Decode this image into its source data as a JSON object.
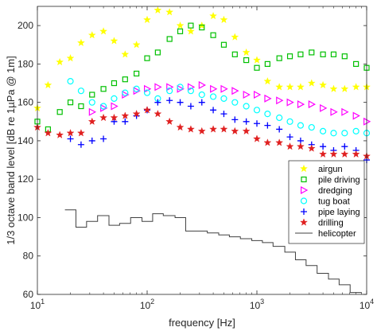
{
  "chart_data": {
    "type": "scatter",
    "title": "",
    "xlabel": "frequency [Hz]",
    "ylabel": "1/3 octave band level [dB re 1µPa @ 1m]",
    "x_scale": "log",
    "xlim": [
      10,
      10000
    ],
    "ylim": [
      60,
      210
    ],
    "x_ticks": [
      10,
      100,
      1000,
      10000
    ],
    "x_tick_labels": [
      "10",
      "10",
      "10",
      "10"
    ],
    "x_tick_exponents": [
      "1",
      "2",
      "3",
      "4"
    ],
    "y_ticks": [
      60,
      80,
      100,
      120,
      140,
      160,
      180,
      200
    ],
    "legend_position": "bottom-right",
    "grid": false,
    "series": [
      {
        "name": "airgun",
        "marker": "star-filled",
        "color": "#ffff00",
        "x": [
          10,
          12.5,
          16,
          20,
          25,
          31.5,
          40,
          50,
          63,
          80,
          100,
          125,
          160,
          200,
          250,
          315,
          400,
          500,
          630,
          800,
          1000,
          1250,
          1600,
          2000,
          2500,
          3150,
          4000,
          5000,
          6300,
          8000,
          10000
        ],
        "y": [
          157,
          169,
          181,
          183,
          191,
          195,
          197,
          192,
          185,
          190,
          203,
          208,
          207,
          200,
          197,
          200,
          205,
          203,
          194,
          186,
          182,
          171,
          168,
          168,
          168,
          170,
          169,
          167,
          167,
          168,
          168
        ]
      },
      {
        "name": "pile driving",
        "marker": "square",
        "color": "#00c000",
        "x": [
          10,
          12.5,
          16,
          20,
          25,
          31.5,
          40,
          50,
          63,
          80,
          100,
          125,
          160,
          200,
          250,
          315,
          400,
          500,
          630,
          800,
          1000,
          1250,
          1600,
          2000,
          2500,
          3150,
          4000,
          5000,
          6300,
          8000,
          10000
        ],
        "y": [
          150,
          146,
          155,
          160,
          158,
          164,
          167,
          170,
          172,
          175,
          183,
          186,
          193,
          197,
          200,
          199,
          195,
          190,
          185,
          182,
          178,
          180,
          183,
          184,
          185,
          186,
          185,
          185,
          184,
          180,
          178
        ]
      },
      {
        "name": "dredging",
        "marker": "triangle-right",
        "color": "#ff00ff",
        "x": [
          31.5,
          40,
          50,
          63,
          80,
          100,
          125,
          160,
          200,
          250,
          315,
          400,
          500,
          630,
          800,
          1000,
          1250,
          1600,
          2000,
          2500,
          3150,
          4000,
          5000,
          6300,
          8000,
          10000
        ],
        "y": [
          155,
          157,
          158,
          164,
          166,
          167,
          168,
          168,
          167,
          168,
          169,
          167,
          167,
          166,
          164,
          164,
          162,
          161,
          160,
          159,
          159,
          157,
          155,
          155,
          153,
          150
        ]
      },
      {
        "name": "tug boat",
        "marker": "circle",
        "color": "#00ffff",
        "x": [
          20,
          25,
          31.5,
          40,
          50,
          63,
          80,
          100,
          125,
          160,
          200,
          250,
          315,
          400,
          500,
          630,
          800,
          1000,
          1250,
          1600,
          2000,
          2500,
          3150,
          4000,
          5000,
          6300,
          8000,
          10000
        ],
        "y": [
          171,
          166,
          160,
          158,
          162,
          165,
          167,
          165,
          162,
          166,
          168,
          166,
          164,
          163,
          162,
          160,
          158,
          156,
          154,
          152,
          150,
          148,
          147,
          145,
          144,
          144,
          145,
          144
        ]
      },
      {
        "name": "pipe laying",
        "marker": "plus",
        "color": "#0000ff",
        "x": [
          20,
          25,
          31.5,
          40,
          50,
          63,
          80,
          100,
          125,
          160,
          200,
          250,
          315,
          400,
          500,
          630,
          800,
          1000,
          1250,
          1600,
          2000,
          2500,
          3150,
          4000,
          5000,
          6300,
          8000,
          10000
        ],
        "y": [
          141,
          138,
          140,
          141,
          150,
          150,
          153,
          156,
          160,
          161,
          160,
          158,
          160,
          156,
          154,
          151,
          150,
          149,
          148,
          146,
          142,
          140,
          138,
          137,
          135,
          137,
          135,
          130
        ]
      },
      {
        "name": "drilling",
        "marker": "star-filled",
        "color": "#e02020",
        "x": [
          10,
          12.5,
          16,
          20,
          25,
          31.5,
          40,
          50,
          63,
          80,
          100,
          125,
          160,
          200,
          250,
          315,
          400,
          500,
          630,
          800,
          1000,
          1250,
          1600,
          2000,
          2500,
          3150,
          4000,
          5000,
          6300,
          8000,
          10000
        ],
        "y": [
          147,
          144,
          143,
          144,
          144,
          150,
          152,
          152,
          153,
          154,
          156,
          154,
          150,
          147,
          146,
          145,
          146,
          146,
          145,
          145,
          141,
          139,
          139,
          137,
          137,
          136,
          133,
          133,
          133,
          133,
          132
        ]
      },
      {
        "name": "helicopter",
        "marker": "line-step",
        "color": "#404040",
        "x": [
          20,
          25,
          31.5,
          40,
          50,
          63,
          80,
          100,
          125,
          160,
          200,
          250,
          315,
          400,
          500,
          630,
          800,
          1000,
          1250,
          1600,
          2000,
          2500,
          3150,
          4000,
          5000,
          6300,
          8000
        ],
        "y": [
          104,
          95,
          98,
          101,
          96,
          97,
          100,
          98,
          102,
          101,
          100,
          93,
          93,
          92,
          91,
          90,
          89,
          88,
          87,
          85,
          82,
          78,
          75,
          71,
          68,
          65,
          61
        ]
      }
    ]
  }
}
